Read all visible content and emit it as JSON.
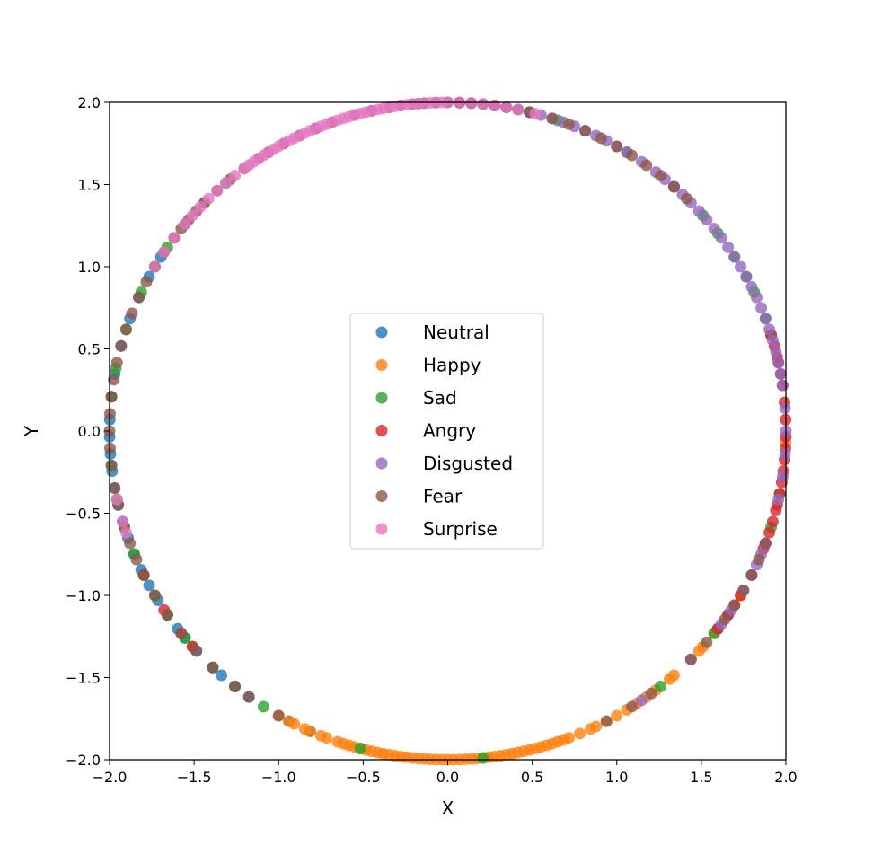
{
  "chart_data": {
    "type": "scatter",
    "title": "",
    "xlabel": "X",
    "ylabel": "Y",
    "xlim": [
      -2.0,
      2.0
    ],
    "ylim": [
      -2.0,
      2.0
    ],
    "xticks": [
      "−2.0",
      "−1.5",
      "−1.0",
      "−0.5",
      "0.0",
      "0.5",
      "1.0",
      "1.5",
      "2.0"
    ],
    "yticks": [
      "−2.0",
      "−1.5",
      "−1.0",
      "−0.5",
      "0.0",
      "0.5",
      "1.0",
      "1.5",
      "2.0"
    ],
    "xtick_values": [
      -2.0,
      -1.5,
      -1.0,
      -0.5,
      0.0,
      0.5,
      1.0,
      1.5,
      2.0
    ],
    "ytick_values": [
      -2.0,
      -1.5,
      -1.0,
      -0.5,
      0.0,
      0.5,
      1.0,
      1.5,
      2.0
    ],
    "grid": false,
    "legend_placement": "center",
    "radius": 2.0,
    "series": [
      {
        "name": "Neutral",
        "color": "#1f77b4",
        "angles_deg": [
          148,
          152,
          156,
          160,
          165,
          170,
          174,
          178,
          181,
          184,
          187,
          190,
          193,
          196,
          199,
          202,
          205,
          208,
          211,
          214,
          217,
          219,
          222,
          226,
          228,
          231,
          234,
          242,
          246,
          323,
          326
        ]
      },
      {
        "name": "Happy",
        "color": "#ff7f0e",
        "angles_deg": [
          240,
          242,
          243,
          245,
          246,
          248,
          249,
          251,
          252,
          253,
          254,
          255,
          256,
          257,
          258,
          259,
          260,
          261,
          262,
          263,
          264,
          265,
          266,
          267,
          268,
          269,
          270,
          271,
          272,
          273,
          274,
          275,
          276,
          277,
          278,
          279,
          280,
          281,
          282,
          283,
          284,
          285,
          286,
          287,
          288,
          289,
          290,
          291,
          293,
          295,
          296,
          298,
          300,
          302,
          304,
          306,
          308,
          311,
          312,
          318,
          319,
          322,
          330,
          358
        ]
      },
      {
        "name": "Sad",
        "color": "#2ca02c",
        "angles_deg": [
          17,
          20,
          25,
          28,
          32,
          37,
          41,
          48,
          58,
          71,
          76,
          80,
          86,
          88,
          95,
          98,
          113,
          131,
          136,
          141,
          146,
          150,
          155,
          162,
          169,
          174,
          186,
          192,
          197,
          202,
          206,
          210,
          214,
          219,
          221,
          226,
          231,
          237,
          255,
          276,
          309,
          322,
          343,
          349
        ]
      },
      {
        "name": "Angry",
        "color": "#d62728",
        "angles_deg": [
          -3,
          -1,
          2,
          5,
          8,
          10,
          12,
          13,
          15,
          17,
          355,
          353,
          351,
          349,
          347,
          346,
          344,
          342,
          340,
          339,
          334,
          330,
          328,
          326,
          323,
          221,
          218,
          213,
          206
        ]
      },
      {
        "name": "Disgusted",
        "color": "#9467bd",
        "angles_deg": [
          -12,
          -8,
          -4,
          0,
          4,
          8,
          10,
          12,
          14,
          16,
          18,
          20,
          22,
          24,
          26,
          28,
          30,
          32,
          34,
          36,
          38,
          40,
          42,
          44,
          46,
          48,
          50,
          52,
          55,
          58,
          60,
          62,
          64,
          66,
          68,
          70,
          72,
          74,
          76,
          78,
          80,
          82,
          84,
          86,
          88,
          340,
          338,
          336,
          334,
          331,
          327,
          324,
          316,
          305
        ]
      },
      {
        "name": "Fear",
        "color": "#8c564b",
        "angles_deg": [
          76,
          78,
          80,
          82,
          84,
          86,
          88,
          90,
          92,
          94,
          96,
          98,
          100,
          103,
          106,
          110,
          113,
          116,
          119,
          122,
          124,
          127,
          130,
          133,
          136,
          138,
          140,
          142,
          144,
          147,
          150,
          153,
          156,
          159,
          162,
          165,
          168,
          171,
          174,
          177,
          180,
          183,
          186,
          190,
          193,
          197,
          200,
          203,
          206,
          210,
          214,
          218,
          222,
          226,
          231,
          234,
          240,
          45,
          48,
          51,
          54,
          57,
          60,
          63,
          66,
          69,
          72,
          340,
          337,
          334,
          331,
          328,
          325,
          320,
          316,
          307,
          303,
          298
        ]
      },
      {
        "name": "Surprise",
        "color": "#e377c2",
        "angles_deg": [
          75,
          78,
          80,
          82,
          84,
          86,
          88,
          90,
          91,
          92,
          93,
          94,
          95,
          96,
          97,
          98,
          99,
          100,
          101,
          102,
          103,
          104,
          105,
          106,
          107,
          108,
          109,
          110,
          111,
          112,
          113,
          114,
          115,
          116,
          117,
          118,
          119,
          120,
          121,
          122,
          123,
          124,
          125,
          126,
          127,
          129,
          131,
          133,
          135,
          137,
          139,
          141,
          144,
          147,
          150,
          192,
          196,
          198
        ]
      }
    ]
  }
}
